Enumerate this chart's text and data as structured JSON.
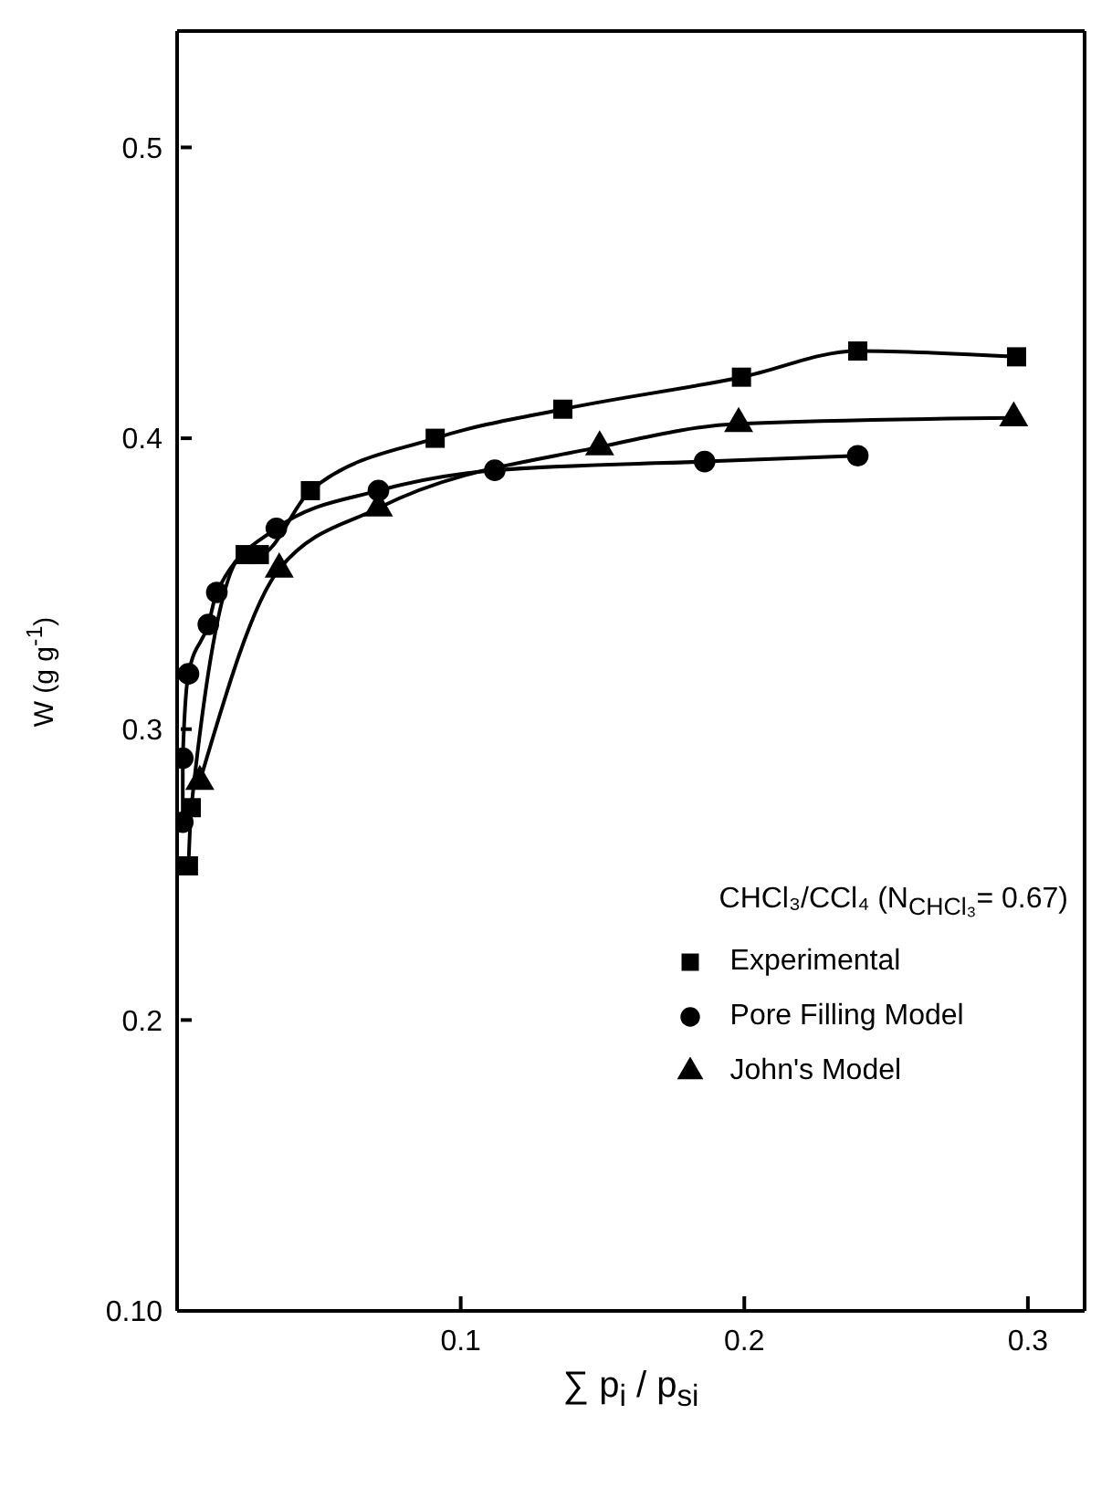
{
  "chart_data": {
    "type": "line",
    "xlabel": "∑ p$_{i}$ / p$_{si}$",
    "ylabel": "W (g g$^{-1}$)",
    "legend_title": "CHCl₃/CCl₄ (N$_{CHCl₃}$= 0.67)",
    "xlim": [
      0,
      0.32
    ],
    "ylim": [
      0.1,
      0.54
    ],
    "xticks": [
      0.1,
      0.2,
      0.3
    ],
    "yticks": [
      {
        "value": 0.1,
        "label": "0.10"
      },
      0.2,
      0.3,
      0.4,
      0.5
    ],
    "legend": "right",
    "line_style": "solid",
    "series": [
      {
        "name": "Experimental",
        "color": "#000000",
        "marker": "square",
        "x": [
          0.004,
          0.005,
          0.024,
          0.029,
          0.047,
          0.091,
          0.136,
          0.199,
          0.24,
          0.296
        ],
        "values": [
          0.253,
          0.273,
          0.36,
          0.36,
          0.382,
          0.4,
          0.41,
          0.421,
          0.43,
          0.428
        ]
      },
      {
        "name": "Pore Filling Model",
        "color": "#000000",
        "marker": "circle",
        "x": [
          0.002,
          0.002,
          0.004,
          0.011,
          0.014,
          0.035,
          0.071,
          0.112,
          0.186,
          0.24
        ],
        "values": [
          0.268,
          0.29,
          0.319,
          0.336,
          0.347,
          0.369,
          0.382,
          0.389,
          0.392,
          0.394
        ]
      },
      {
        "name": "John's Model",
        "color": "#000000",
        "marker": "triangle",
        "x": [
          0.008,
          0.036,
          0.071,
          0.149,
          0.198,
          0.295
        ],
        "values": [
          0.282,
          0.355,
          0.376,
          0.397,
          0.405,
          0.407
        ]
      }
    ]
  }
}
